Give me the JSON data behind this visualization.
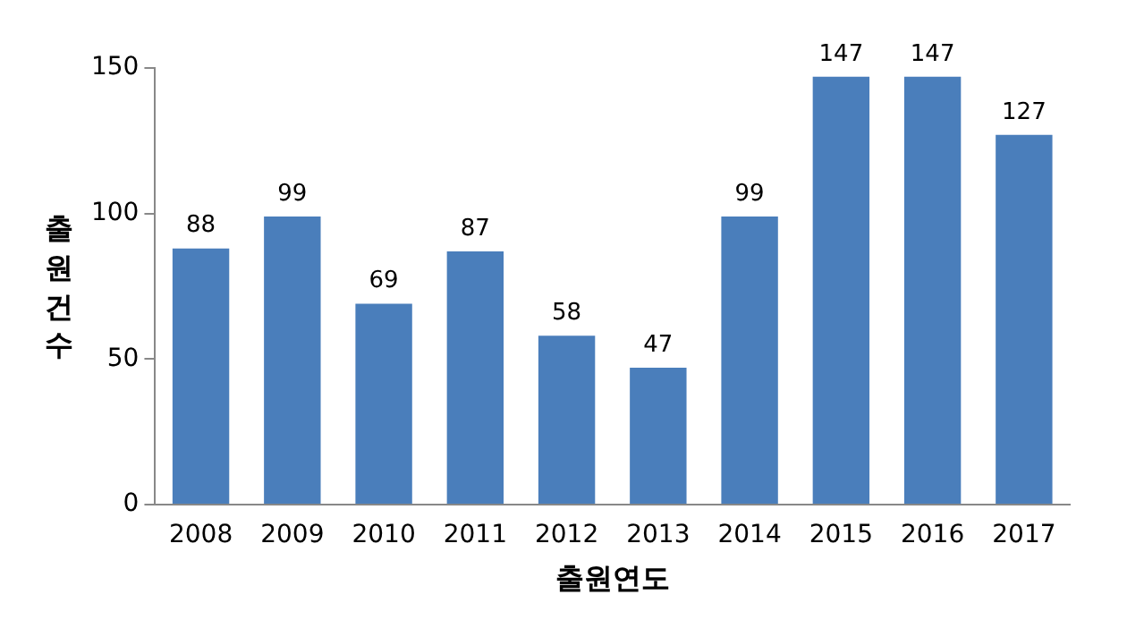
{
  "chart_data": {
    "type": "bar",
    "xlabel": "출원연도",
    "ylabel": "출원건수",
    "categories": [
      "2008",
      "2009",
      "2010",
      "2011",
      "2012",
      "2013",
      "2014",
      "2015",
      "2016",
      "2017"
    ],
    "values": [
      88,
      99,
      69,
      87,
      58,
      47,
      99,
      147,
      147,
      127
    ],
    "color": "#4a7ebb",
    "ylim": [
      0,
      150
    ],
    "yticks": [
      0,
      50,
      100,
      150
    ],
    "grid": false,
    "legend": false,
    "data_labels": true
  }
}
